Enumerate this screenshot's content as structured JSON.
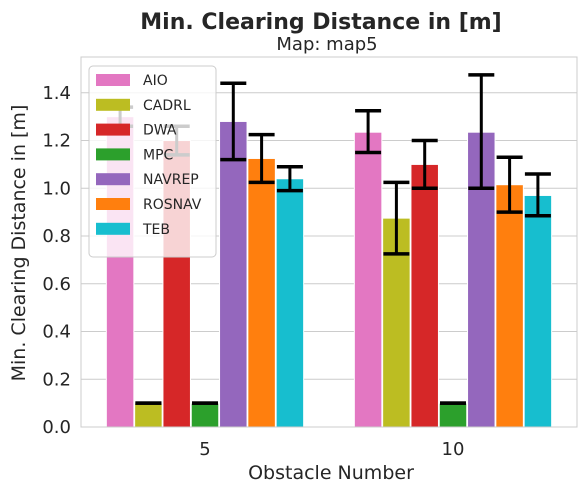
{
  "chart_data": {
    "type": "bar",
    "title": "Min. Clearing Distance in [m]",
    "subtitle": "Map: map5",
    "xlabel": "Obstacle Number",
    "ylabel": "Min. Clearing Distance in [m]",
    "categories": [
      "5",
      "10"
    ],
    "ylim": [
      0,
      1.55
    ],
    "yticks": [
      0.0,
      0.2,
      0.4,
      0.6,
      0.8,
      1.0,
      1.2,
      1.4
    ],
    "ytick_labels": [
      "0.0",
      "0.2",
      "0.4",
      "0.6",
      "0.8",
      "1.0",
      "1.2",
      "1.4"
    ],
    "grid": true,
    "legend_position": "top-left",
    "series": [
      {
        "name": "AIO",
        "color": "#e377c2",
        "values": [
          1.3,
          1.235
        ],
        "err_low": [
          1.26,
          1.15
        ],
        "err_high": [
          1.34,
          1.325
        ]
      },
      {
        "name": "CADRL",
        "color": "#bcbd22",
        "values": [
          0.1,
          0.875
        ],
        "err_low": [
          0.1,
          0.725
        ],
        "err_high": [
          0.1,
          1.025
        ]
      },
      {
        "name": "DWA",
        "color": "#d62728",
        "values": [
          1.2,
          1.1
        ],
        "err_low": [
          1.14,
          1.0
        ],
        "err_high": [
          1.26,
          1.2
        ]
      },
      {
        "name": "MPC",
        "color": "#2ca02c",
        "values": [
          0.1,
          0.1
        ],
        "err_low": [
          0.1,
          0.1
        ],
        "err_high": [
          0.1,
          0.1
        ]
      },
      {
        "name": "NAVREP",
        "color": "#9467bd",
        "values": [
          1.28,
          1.235
        ],
        "err_low": [
          1.12,
          1.0
        ],
        "err_high": [
          1.44,
          1.475
        ]
      },
      {
        "name": "ROSNAV",
        "color": "#ff7f0e",
        "values": [
          1.125,
          1.015
        ],
        "err_low": [
          1.025,
          0.9
        ],
        "err_high": [
          1.225,
          1.13
        ]
      },
      {
        "name": "TEB",
        "color": "#17becf",
        "values": [
          1.04,
          0.97
        ],
        "err_low": [
          0.99,
          0.885
        ],
        "err_high": [
          1.09,
          1.06
        ]
      }
    ]
  }
}
